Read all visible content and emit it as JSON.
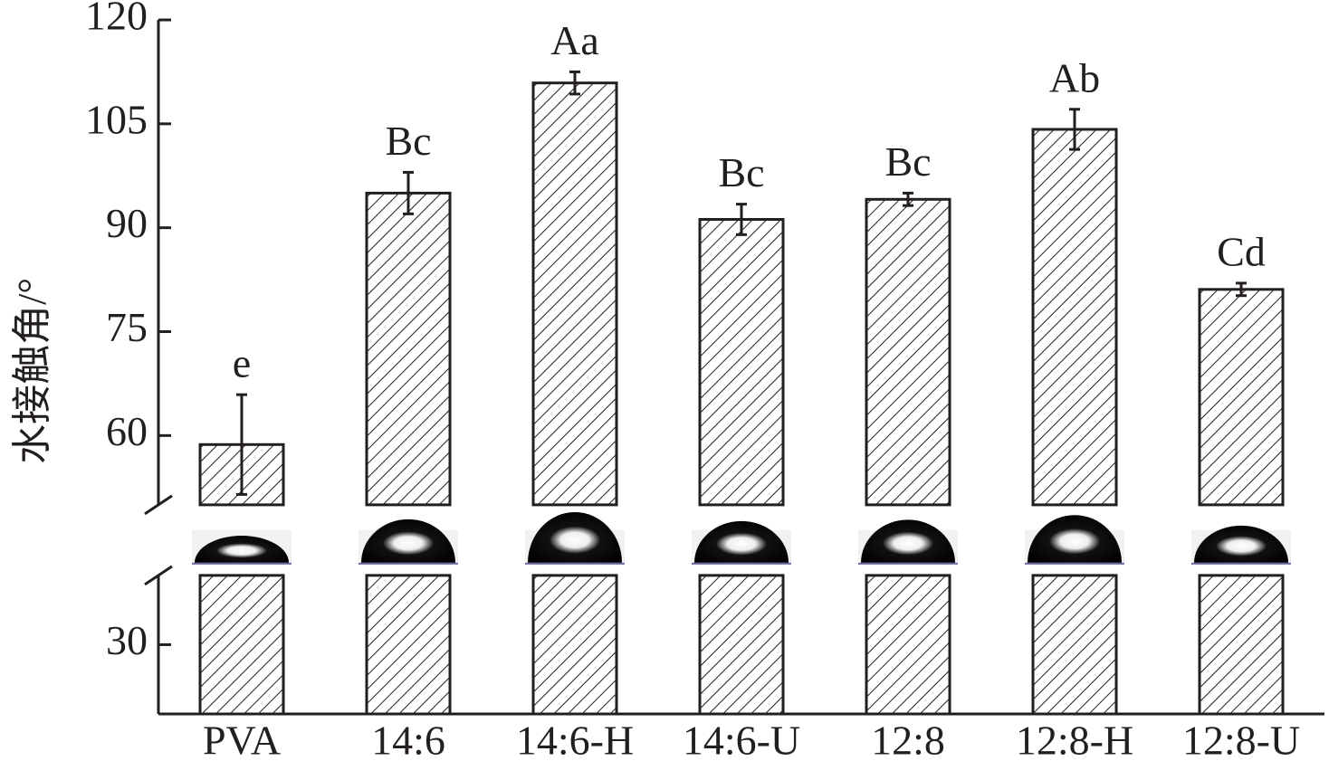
{
  "chart_data": {
    "type": "bar",
    "y_label": "水接触角/°",
    "categories": [
      "PVA",
      "14:6",
      "14:6-H",
      "14:6-U",
      "12:8",
      "12:8-H",
      "12:8-U"
    ],
    "values": [
      58.7,
      95.0,
      110.9,
      91.2,
      94.1,
      104.2,
      81.1
    ],
    "errors": [
      7.2,
      3.0,
      1.6,
      2.2,
      0.9,
      2.9,
      0.9
    ],
    "annotations": [
      "e",
      "Bc",
      "Aa",
      "Bc",
      "Bc",
      "Ab",
      "Cd"
    ],
    "color": "#231f20",
    "ylim": [
      20,
      120
    ],
    "ybreak": [
      40,
      50
    ],
    "yticks": [
      30,
      60,
      75,
      90,
      105,
      120
    ]
  }
}
